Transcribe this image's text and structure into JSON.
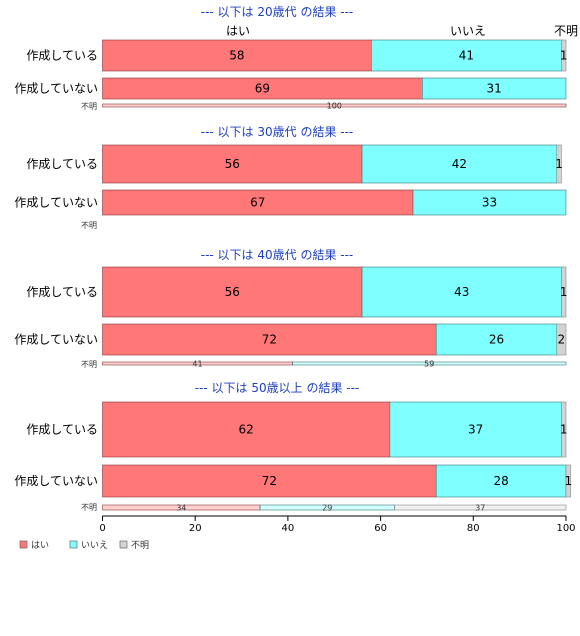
{
  "chart_data": {
    "type": "bar",
    "orientation": "horizontal-stacked-percent",
    "xlim": [
      0,
      100
    ],
    "xticks": [
      "0",
      "20",
      "40",
      "60",
      "80",
      "100"
    ],
    "legend": {
      "placement": "bottom-left",
      "entries": [
        {
          "label": "はい",
          "color": "#ff7777"
        },
        {
          "label": "いいえ",
          "color": "#7fffff"
        },
        {
          "label": "不明",
          "color": "#d3d3d3"
        }
      ]
    },
    "column_headers": [
      "はい",
      "いいえ",
      "不明"
    ],
    "groups": [
      {
        "heading": "--- 以下は 20歳代 の結果 ---",
        "rows": [
          {
            "category": "作成している",
            "values": [
              58,
              41,
              1
            ]
          },
          {
            "category": "作成していない",
            "values": [
              69,
              31,
              0
            ]
          }
        ],
        "unknown_row": {
          "category": "不明",
          "values": [
            100,
            0,
            0
          ]
        }
      },
      {
        "heading": "--- 以下は 30歳代 の結果 ---",
        "rows": [
          {
            "category": "作成している",
            "values": [
              56,
              42,
              1
            ]
          },
          {
            "category": "作成していない",
            "values": [
              67,
              33,
              0
            ]
          }
        ],
        "unknown_row": {
          "category": "不明",
          "values": []
        }
      },
      {
        "heading": "--- 以下は 40歳代 の結果 ---",
        "rows": [
          {
            "category": "作成している",
            "values": [
              56,
              43,
              1
            ]
          },
          {
            "category": "作成していない",
            "values": [
              72,
              26,
              2
            ]
          }
        ],
        "unknown_row": {
          "category": "不明",
          "values": [
            41,
            59,
            0
          ]
        }
      },
      {
        "heading": "--- 以下は 50歳以上 の結果 ---",
        "rows": [
          {
            "category": "作成している",
            "values": [
              62,
              37,
              1
            ]
          },
          {
            "category": "作成していない",
            "values": [
              72,
              28,
              1
            ]
          }
        ],
        "unknown_row": {
          "category": "不明",
          "values": [
            34,
            29,
            37
          ]
        }
      }
    ]
  }
}
